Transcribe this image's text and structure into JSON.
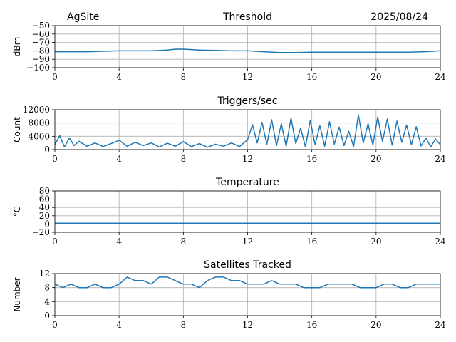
{
  "header": {
    "site": "AgSite",
    "date": "2025/08/24"
  },
  "colors": {
    "line": "#1f77b4",
    "grid": "#b0b0b0",
    "axis": "#000000"
  },
  "chart_data": [
    {
      "type": "line",
      "title": "Threshold",
      "ylabel": "dBm",
      "xlim": [
        0,
        24
      ],
      "ylim": [
        -100,
        -50
      ],
      "xticks": [
        0,
        4,
        8,
        12,
        16,
        20,
        24
      ],
      "yticks": [
        -100,
        -90,
        -80,
        -70,
        -60,
        -50
      ],
      "ytick_labels": [
        "−100",
        "−90",
        "−80",
        "−70",
        "−60",
        "−50"
      ],
      "grid": true,
      "series": [
        {
          "x": [
            0,
            1,
            2,
            3,
            4,
            5,
            6,
            7,
            7.5,
            8,
            9,
            10,
            11,
            12,
            13,
            14,
            15,
            16,
            17,
            18,
            19,
            20,
            21,
            22,
            23,
            24
          ],
          "values": [
            -81,
            -81,
            -81,
            -80.5,
            -80,
            -80,
            -80,
            -79,
            -78,
            -78,
            -79,
            -79.5,
            -80,
            -80,
            -81,
            -82,
            -82,
            -81.5,
            -81.5,
            -81.5,
            -81.5,
            -81.5,
            -81.5,
            -81.5,
            -81,
            -80
          ]
        }
      ]
    },
    {
      "type": "line",
      "title": "Triggers/sec",
      "ylabel": "Count",
      "xlim": [
        0,
        24
      ],
      "ylim": [
        0,
        12000
      ],
      "xticks": [
        0,
        4,
        8,
        12,
        16,
        20,
        24
      ],
      "yticks": [
        0,
        4000,
        8000,
        12000
      ],
      "ytick_labels": [
        "0",
        "4000",
        "8000",
        "12000"
      ],
      "grid": true,
      "series": [
        {
          "x": [
            0,
            0.3,
            0.6,
            0.9,
            1.2,
            1.5,
            2,
            2.5,
            3,
            3.5,
            4,
            4.5,
            5,
            5.5,
            6,
            6.5,
            7,
            7.5,
            8,
            8.5,
            9,
            9.5,
            10,
            10.5,
            11,
            11.5,
            12,
            12.3,
            12.6,
            12.9,
            13.2,
            13.5,
            13.8,
            14.1,
            14.4,
            14.7,
            15,
            15.3,
            15.6,
            15.9,
            16.2,
            16.5,
            16.8,
            17.1,
            17.4,
            17.7,
            18,
            18.3,
            18.6,
            18.9,
            19.2,
            19.5,
            19.8,
            20.1,
            20.4,
            20.7,
            21,
            21.3,
            21.6,
            21.9,
            22.2,
            22.5,
            22.8,
            23.1,
            23.4,
            23.7,
            24
          ],
          "values": [
            1500,
            4200,
            800,
            3500,
            1200,
            2500,
            1000,
            2000,
            900,
            1800,
            2800,
            1000,
            2200,
            1200,
            2000,
            800,
            1900,
            1000,
            2400,
            900,
            1800,
            700,
            1600,
            1000,
            2000,
            900,
            3000,
            7500,
            2000,
            8200,
            1500,
            9000,
            1200,
            7800,
            1000,
            9500,
            1800,
            6500,
            800,
            8800,
            1500,
            7200,
            1000,
            8400,
            1600,
            6800,
            1200,
            5500,
            900,
            10500,
            2000,
            7800,
            1400,
            9800,
            2500,
            9200,
            1300,
            8600,
            2200,
            7400,
            1500,
            6900,
            1100,
            3500,
            800,
            3200,
            1500
          ]
        }
      ]
    },
    {
      "type": "line",
      "title": "Temperature",
      "ylabel": "°C",
      "xlim": [
        0,
        24
      ],
      "ylim": [
        -20,
        80
      ],
      "xticks": [
        0,
        4,
        8,
        12,
        16,
        20,
        24
      ],
      "yticks": [
        -20,
        0,
        20,
        40,
        60,
        80
      ],
      "ytick_labels": [
        "−20",
        "0",
        "20",
        "40",
        "60",
        "80"
      ],
      "grid": true,
      "series": [
        {
          "x": [
            0,
            24
          ],
          "values": [
            2,
            2
          ]
        }
      ]
    },
    {
      "type": "line",
      "title": "Satellites Tracked",
      "ylabel": "Number",
      "xlim": [
        0,
        24
      ],
      "ylim": [
        0,
        12
      ],
      "xticks": [
        0,
        4,
        8,
        12,
        16,
        20,
        24
      ],
      "yticks": [
        0,
        4,
        8,
        12
      ],
      "ytick_labels": [
        "0",
        "4",
        "8",
        "12"
      ],
      "grid": true,
      "series": [
        {
          "x": [
            0,
            0.5,
            1,
            1.5,
            2,
            2.5,
            3,
            3.5,
            4,
            4.5,
            5,
            5.5,
            6,
            6.5,
            7,
            7.5,
            8,
            8.5,
            9,
            9.5,
            10,
            10.5,
            11,
            11.5,
            12,
            12.5,
            13,
            13.5,
            14,
            14.5,
            15,
            15.5,
            16,
            16.5,
            17,
            17.5,
            18,
            18.5,
            19,
            19.5,
            20,
            20.5,
            21,
            21.5,
            22,
            22.5,
            23,
            23.5,
            24
          ],
          "values": [
            9,
            8,
            9,
            8,
            8,
            9,
            8,
            8,
            9,
            11,
            10,
            10,
            9,
            11,
            11,
            10,
            9,
            9,
            8,
            10,
            11,
            11,
            10,
            10,
            9,
            9,
            9,
            10,
            9,
            9,
            9,
            8,
            8,
            8,
            9,
            9,
            9,
            9,
            8,
            8,
            8,
            9,
            9,
            8,
            8,
            9,
            9,
            9,
            9
          ]
        }
      ]
    }
  ]
}
